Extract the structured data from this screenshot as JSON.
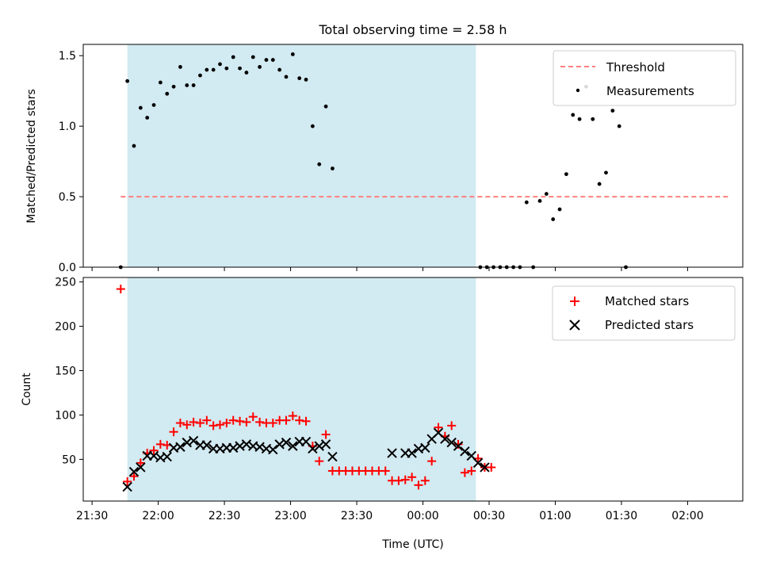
{
  "figure": {
    "title": "Total observing time = 2.58 h",
    "xlabel": "Time (UTC)"
  },
  "colors": {
    "shade": "#add8e6",
    "threshold": "#ff7f7f",
    "measurement": "#000000",
    "matched": "#ff0000",
    "predicted": "#000000"
  },
  "chart_data": [
    {
      "type": "scatter",
      "ylabel": "Matched/Predicted stars",
      "xlim": [
        "21:26",
        "02:25"
      ],
      "ylim": [
        0,
        1.58
      ],
      "x_ticks": [
        "21:30",
        "22:00",
        "22:30",
        "23:00",
        "23:30",
        "00:00",
        "00:30",
        "01:00",
        "01:30",
        "02:00"
      ],
      "y_ticks": [
        "0.0",
        "0.5",
        "1.0",
        "1.5"
      ],
      "shaded_region": {
        "from": "21:46",
        "to": "00:24"
      },
      "grid": false,
      "legend_position": "top-right",
      "legend": [
        "Threshold",
        "Measurements"
      ],
      "threshold": {
        "name": "Threshold",
        "value": 0.5,
        "from": "21:43",
        "to": "02:19"
      },
      "series": [
        {
          "name": "Measurements",
          "points": [
            [
              "21:43",
              0.0
            ],
            [
              "21:46",
              1.32
            ],
            [
              "21:49",
              0.86
            ],
            [
              "21:52",
              1.13
            ],
            [
              "21:55",
              1.06
            ],
            [
              "21:58",
              1.15
            ],
            [
              "22:01",
              1.31
            ],
            [
              "22:04",
              1.23
            ],
            [
              "22:07",
              1.28
            ],
            [
              "22:10",
              1.42
            ],
            [
              "22:13",
              1.29
            ],
            [
              "22:16",
              1.29
            ],
            [
              "22:19",
              1.36
            ],
            [
              "22:22",
              1.4
            ],
            [
              "22:25",
              1.4
            ],
            [
              "22:28",
              1.44
            ],
            [
              "22:31",
              1.41
            ],
            [
              "22:34",
              1.49
            ],
            [
              "22:37",
              1.41
            ],
            [
              "22:40",
              1.38
            ],
            [
              "22:43",
              1.49
            ],
            [
              "22:46",
              1.42
            ],
            [
              "22:49",
              1.47
            ],
            [
              "22:52",
              1.47
            ],
            [
              "22:55",
              1.4
            ],
            [
              "22:58",
              1.35
            ],
            [
              "23:01",
              1.51
            ],
            [
              "23:04",
              1.34
            ],
            [
              "23:07",
              1.33
            ],
            [
              "23:10",
              1.0
            ],
            [
              "23:13",
              0.73
            ],
            [
              "23:16",
              1.14
            ],
            [
              "23:19",
              0.7
            ],
            [
              "00:26",
              0.0
            ],
            [
              "00:29",
              0.0
            ],
            [
              "00:32",
              0.0
            ],
            [
              "00:35",
              0.0
            ],
            [
              "00:38",
              0.0
            ],
            [
              "00:41",
              0.0
            ],
            [
              "00:44",
              0.0
            ],
            [
              "00:47",
              0.46
            ],
            [
              "00:50",
              0.0
            ],
            [
              "00:53",
              0.47
            ],
            [
              "00:56",
              0.52
            ],
            [
              "00:59",
              0.34
            ],
            [
              "01:02",
              0.41
            ],
            [
              "01:05",
              0.66
            ],
            [
              "01:08",
              1.08
            ],
            [
              "01:11",
              1.05
            ],
            [
              "01:14",
              1.28
            ],
            [
              "01:17",
              1.05
            ],
            [
              "01:20",
              0.59
            ],
            [
              "01:23",
              0.67
            ],
            [
              "01:26",
              1.11
            ],
            [
              "01:29",
              1.0
            ],
            [
              "01:32",
              0.0
            ]
          ]
        }
      ]
    },
    {
      "type": "scatter",
      "ylabel": "Count",
      "xlim": [
        "21:26",
        "02:25"
      ],
      "ylim": [
        3,
        255
      ],
      "x_ticks": [
        "21:30",
        "22:00",
        "22:30",
        "23:00",
        "23:30",
        "00:00",
        "00:30",
        "01:00",
        "01:30",
        "02:00"
      ],
      "y_ticks": [
        "50",
        "100",
        "150",
        "200",
        "250"
      ],
      "shaded_region": {
        "from": "21:46",
        "to": "00:24"
      },
      "grid": false,
      "legend_position": "top-right",
      "legend": [
        "Matched stars",
        "Predicted stars"
      ],
      "series": [
        {
          "name": "Matched stars",
          "marker": "+",
          "points": [
            [
              "21:43",
              242
            ],
            [
              "21:46",
              25
            ],
            [
              "21:49",
              31
            ],
            [
              "21:52",
              46
            ],
            [
              "21:55",
              57
            ],
            [
              "21:58",
              60
            ],
            [
              "22:01",
              67
            ],
            [
              "22:04",
              66
            ],
            [
              "22:07",
              81
            ],
            [
              "22:10",
              91
            ],
            [
              "22:13",
              89
            ],
            [
              "22:16",
              92
            ],
            [
              "22:19",
              91
            ],
            [
              "22:22",
              94
            ],
            [
              "22:25",
              88
            ],
            [
              "22:28",
              89
            ],
            [
              "22:31",
              91
            ],
            [
              "22:34",
              94
            ],
            [
              "22:37",
              93
            ],
            [
              "22:40",
              92
            ],
            [
              "22:43",
              98
            ],
            [
              "22:46",
              92
            ],
            [
              "22:49",
              91
            ],
            [
              "22:52",
              91
            ],
            [
              "22:55",
              94
            ],
            [
              "22:58",
              94
            ],
            [
              "23:01",
              99
            ],
            [
              "23:04",
              94
            ],
            [
              "23:07",
              93
            ],
            [
              "23:10",
              65
            ],
            [
              "23:13",
              48
            ],
            [
              "23:16",
              78
            ],
            [
              "23:19",
              37
            ],
            [
              "23:22",
              37
            ],
            [
              "23:25",
              37
            ],
            [
              "23:28",
              37
            ],
            [
              "23:31",
              37
            ],
            [
              "23:34",
              37
            ],
            [
              "23:37",
              37
            ],
            [
              "23:40",
              37
            ],
            [
              "23:43",
              37
            ],
            [
              "23:46",
              26
            ],
            [
              "23:49",
              26
            ],
            [
              "23:52",
              27
            ],
            [
              "23:55",
              30
            ],
            [
              "23:58",
              21
            ],
            [
              "00:01",
              26
            ],
            [
              "00:04",
              48
            ],
            [
              "00:07",
              86
            ],
            [
              "00:10",
              76
            ],
            [
              "00:13",
              88
            ],
            [
              "00:16",
              67
            ],
            [
              "00:19",
              35
            ],
            [
              "00:22",
              37
            ],
            [
              "00:25",
              51
            ],
            [
              "00:28",
              41
            ],
            [
              "00:31",
              41
            ]
          ]
        },
        {
          "name": "Predicted stars",
          "marker": "x",
          "points": [
            [
              "21:46",
              19
            ],
            [
              "21:49",
              36
            ],
            [
              "21:52",
              41
            ],
            [
              "21:55",
              54
            ],
            [
              "21:58",
              54
            ],
            [
              "22:01",
              52
            ],
            [
              "22:04",
              53
            ],
            [
              "22:07",
              63
            ],
            [
              "22:10",
              64
            ],
            [
              "22:13",
              69
            ],
            [
              "22:16",
              71
            ],
            [
              "22:19",
              66
            ],
            [
              "22:22",
              66
            ],
            [
              "22:25",
              62
            ],
            [
              "22:28",
              62
            ],
            [
              "22:31",
              63
            ],
            [
              "22:34",
              63
            ],
            [
              "22:37",
              65
            ],
            [
              "22:40",
              67
            ],
            [
              "22:43",
              65
            ],
            [
              "22:46",
              64
            ],
            [
              "22:49",
              62
            ],
            [
              "22:52",
              61
            ],
            [
              "22:55",
              67
            ],
            [
              "22:58",
              69
            ],
            [
              "23:01",
              65
            ],
            [
              "23:04",
              70
            ],
            [
              "23:07",
              70
            ],
            [
              "23:10",
              62
            ],
            [
              "23:13",
              65
            ],
            [
              "23:16",
              67
            ],
            [
              "23:19",
              53
            ],
            [
              "23:46",
              57
            ],
            [
              "23:52",
              57
            ],
            [
              "23:55",
              57
            ],
            [
              "23:58",
              62
            ],
            [
              "00:01",
              63
            ],
            [
              "00:04",
              73
            ],
            [
              "00:07",
              80
            ],
            [
              "00:10",
              73
            ],
            [
              "00:13",
              69
            ],
            [
              "00:16",
              65
            ],
            [
              "00:19",
              59
            ],
            [
              "00:22",
              54
            ],
            [
              "00:25",
              46
            ],
            [
              "00:28",
              41
            ]
          ]
        }
      ]
    }
  ]
}
